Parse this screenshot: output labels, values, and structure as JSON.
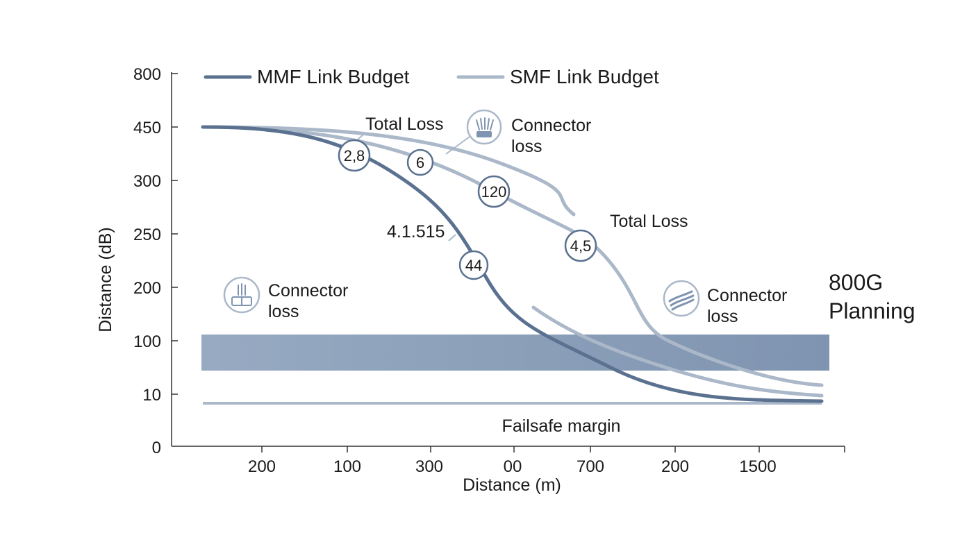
{
  "chart_data": {
    "type": "line",
    "ylabel": "Distance (dB)",
    "xlabel": "Distance (m)",
    "y_ticks": [
      "800",
      "450",
      "300",
      "250",
      "200",
      "100",
      "10",
      "0"
    ],
    "x_ticks": [
      "200",
      "100",
      "300",
      "00",
      "700",
      "200",
      "1500"
    ],
    "legend": {
      "placement": "top-left"
    },
    "grid": false,
    "series": [
      {
        "name": "MMF Link Budget",
        "color": "#5b7190"
      },
      {
        "name": "SMF Link Budget",
        "color": "#aab8c9"
      }
    ],
    "value_markers": [
      "2,8",
      "6",
      "120",
      "44",
      "4,5"
    ],
    "annotations": {
      "total_loss_1": "Total Loss",
      "total_loss_2": "Total Loss",
      "connector_loss_1": [
        "Connector",
        "loss"
      ],
      "connector_loss_2": [
        "Connector",
        "loss"
      ],
      "connector_loss_3": [
        "Connector",
        "loss"
      ],
      "mmf_value_label": "4.1.515",
      "failsafe": "Failsafe margin",
      "planning": [
        "800G",
        "Planning"
      ]
    },
    "band_color": "#8a9fb9"
  }
}
